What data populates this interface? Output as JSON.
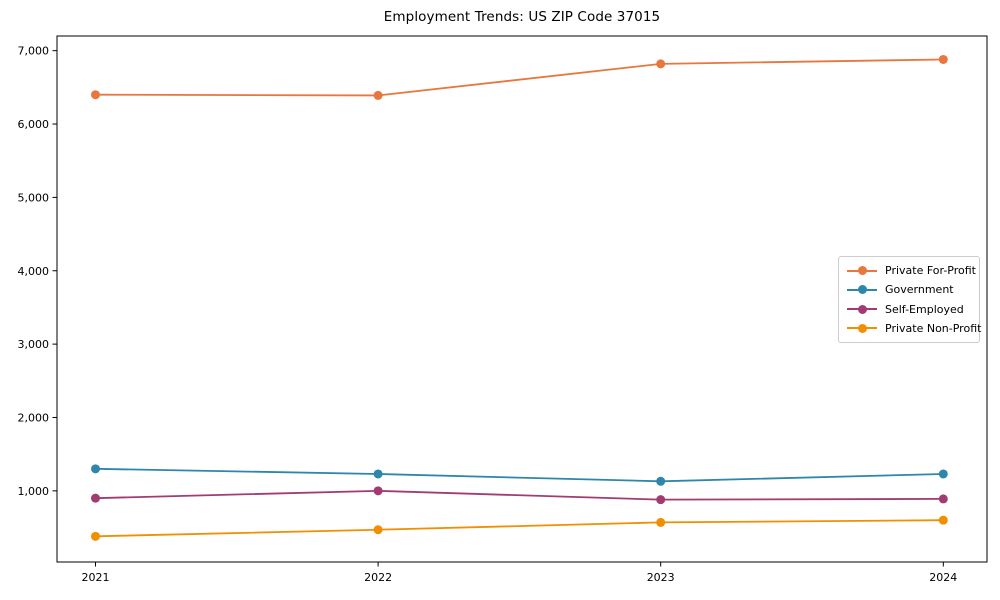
{
  "chart_data": {
    "type": "line",
    "title": "Employment Trends: US ZIP Code 37015",
    "categories": [
      "2021",
      "2022",
      "2023",
      "2024"
    ],
    "series": [
      {
        "name": "Private For-Profit",
        "color": "#e8763d",
        "values": [
          6400,
          6390,
          6820,
          6880
        ]
      },
      {
        "name": "Government",
        "color": "#2e86ab",
        "values": [
          1300,
          1230,
          1130,
          1230
        ]
      },
      {
        "name": "Self-Employed",
        "color": "#a23b72",
        "values": [
          900,
          1000,
          880,
          890
        ]
      },
      {
        "name": "Private Non-Profit",
        "color": "#f18f01",
        "values": [
          380,
          470,
          570,
          600
        ]
      }
    ],
    "xlabel": "",
    "ylabel": "",
    "ylim": [
      30,
      7200
    ],
    "yticks": [
      1000,
      2000,
      3000,
      4000,
      5000,
      6000,
      7000
    ],
    "ytick_labels": [
      "1,000",
      "2,000",
      "3,000",
      "4,000",
      "5,000",
      "6,000",
      "7,000"
    ],
    "grid": false,
    "legend_position": "center-right",
    "axis_color": "#000000",
    "text_color": "#000000"
  }
}
